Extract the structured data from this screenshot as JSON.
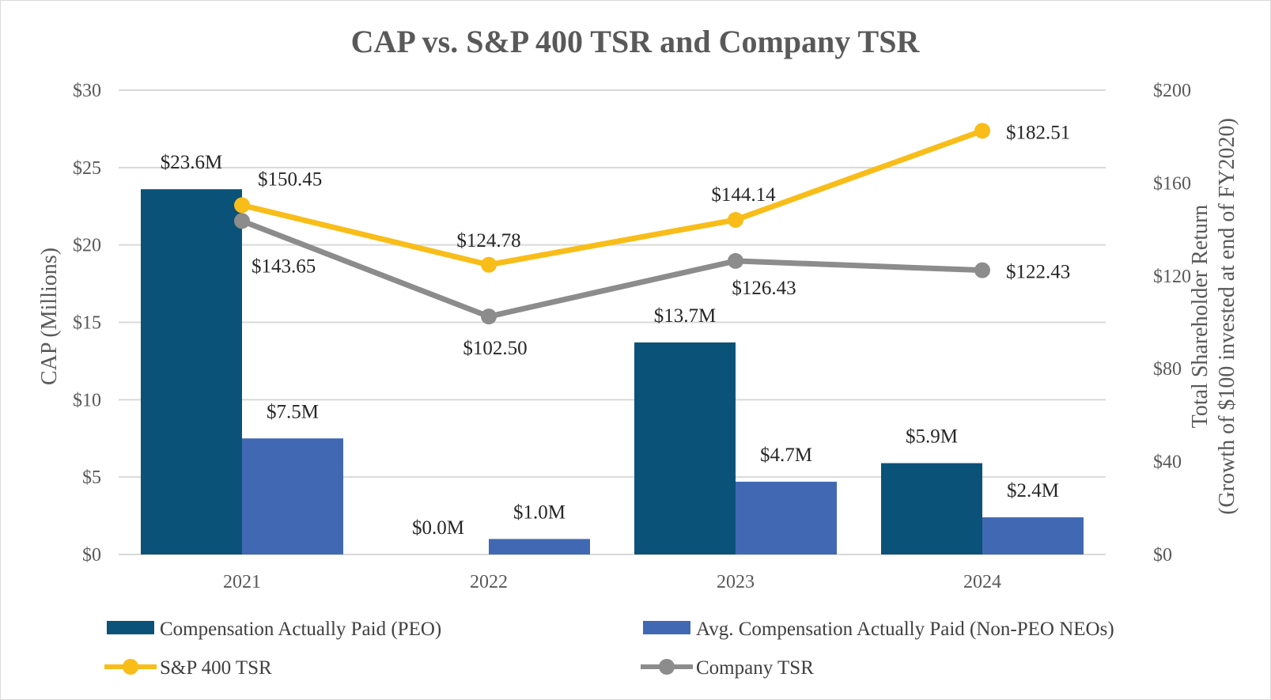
{
  "chart_data": {
    "type": "bar+line",
    "title": "CAP vs. S&P 400 TSR and Company TSR",
    "categories": [
      "2021",
      "2022",
      "2023",
      "2024"
    ],
    "ylabel_left": "CAP (Millions)",
    "ylabel_right_line1": "Total Shareholder Return",
    "ylabel_right_line2": "(Growth of $100 invested at end of FY2020)",
    "ylim_left": [
      0,
      30
    ],
    "ylim_right": [
      0,
      200
    ],
    "left_ticks": [
      {
        "value": 0,
        "label": "$0"
      },
      {
        "value": 5,
        "label": "$5"
      },
      {
        "value": 10,
        "label": "$10"
      },
      {
        "value": 15,
        "label": "$15"
      },
      {
        "value": 20,
        "label": "$20"
      },
      {
        "value": 25,
        "label": "$25"
      },
      {
        "value": 30,
        "label": "$30"
      }
    ],
    "right_ticks": [
      {
        "value": 0,
        "label": "$0"
      },
      {
        "value": 40,
        "label": "$40"
      },
      {
        "value": 80,
        "label": "$80"
      },
      {
        "value": 120,
        "label": "$120"
      },
      {
        "value": 160,
        "label": "$160"
      },
      {
        "value": 200,
        "label": "$200"
      }
    ],
    "bar_series": [
      {
        "name": "Compensation Actually Paid (PEO)",
        "color": "#0b5279",
        "values": [
          23.6,
          0.0,
          13.7,
          5.9
        ],
        "labels": [
          "$23.6M",
          "$0.0M",
          "$13.7M",
          "$5.9M"
        ]
      },
      {
        "name": "Avg. Compensation Actually Paid (Non-PEO NEOs)",
        "color": "#4169b3",
        "values": [
          7.5,
          1.0,
          4.7,
          2.4
        ],
        "labels": [
          "$7.5M",
          "$1.0M",
          "$4.7M",
          "$2.4M"
        ]
      }
    ],
    "line_series": [
      {
        "name": "S&P 400 TSR",
        "color": "#f8bd19",
        "values": [
          150.45,
          124.78,
          144.14,
          182.51
        ],
        "labels": [
          "$150.45",
          "$124.78",
          "$144.14",
          "$182.51"
        ]
      },
      {
        "name": "Company TSR",
        "color": "#8c8c8c",
        "values": [
          143.65,
          102.5,
          126.43,
          122.43
        ],
        "labels": [
          "$143.65",
          "$102.50",
          "$126.43",
          "$122.43"
        ]
      }
    ],
    "grid": true,
    "legend_position": "bottom"
  }
}
